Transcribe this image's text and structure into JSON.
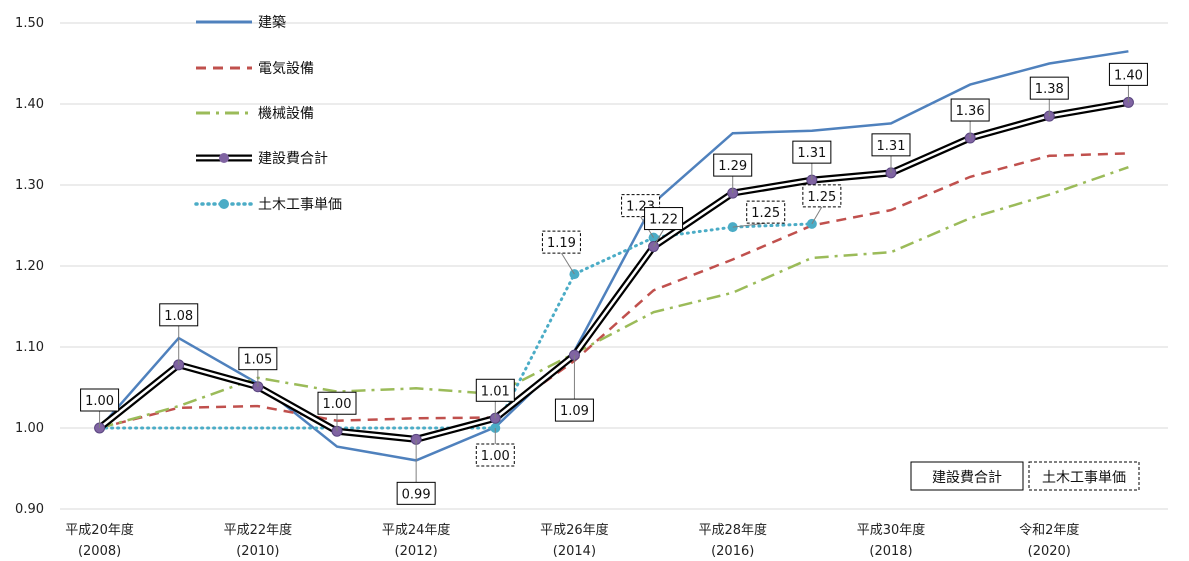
{
  "chart_data": {
    "type": "line",
    "ylim": [
      0.9,
      1.5
    ],
    "yticks": [
      "0.90",
      "1.00",
      "1.10",
      "1.20",
      "1.30",
      "1.40",
      "1.50"
    ],
    "x": [
      2008,
      2009,
      2010,
      2011,
      2012,
      2013,
      2014,
      2015,
      2016,
      2017,
      2018,
      2019,
      2020,
      2021
    ],
    "xticks": [
      {
        "x": 2008,
        "line1": "平成20年度",
        "line2": "(2008)"
      },
      {
        "x": 2010,
        "line1": "平成22年度",
        "line2": "(2010)"
      },
      {
        "x": 2012,
        "line1": "平成24年度",
        "line2": "(2012)"
      },
      {
        "x": 2014,
        "line1": "平成26年度",
        "line2": "(2014)"
      },
      {
        "x": 2016,
        "line1": "平成28年度",
        "line2": "(2016)"
      },
      {
        "x": 2018,
        "line1": "平成30年度",
        "line2": "(2018)"
      },
      {
        "x": 2020,
        "line1": "令和2年度",
        "line2": "(2020)"
      }
    ],
    "series": [
      {
        "name": "建築",
        "style": "solid",
        "color": "#4f81bd",
        "values": [
          1.0,
          1.111,
          1.055,
          0.977,
          0.96,
          1.001,
          1.095,
          1.278,
          1.364,
          1.367,
          1.376,
          1.424,
          1.45,
          1.465
        ]
      },
      {
        "name": "電気設備",
        "style": "dashed",
        "color": "#c0504d",
        "values": [
          1.0,
          1.025,
          1.027,
          1.009,
          1.012,
          1.013,
          1.083,
          1.17,
          1.208,
          1.25,
          1.269,
          1.31,
          1.336,
          1.339
        ]
      },
      {
        "name": "機械設備",
        "style": "dashdot",
        "color": "#9bbb59",
        "values": [
          1.0,
          1.027,
          1.062,
          1.045,
          1.049,
          1.042,
          1.092,
          1.143,
          1.167,
          1.21,
          1.217,
          1.259,
          1.288,
          1.322
        ]
      },
      {
        "name": "建設費合計",
        "style": "double",
        "color": "#000000",
        "marker_color": "#8064a2",
        "values": [
          1.0,
          1.078,
          1.051,
          0.996,
          0.986,
          1.012,
          1.09,
          1.224,
          1.29,
          1.306,
          1.315,
          1.358,
          1.385,
          1.402
        ]
      },
      {
        "name": "土木工事単価",
        "style": "dotted",
        "color": "#4bacc6",
        "values": [
          1.0,
          null,
          null,
          null,
          null,
          1.0,
          1.19,
          1.235,
          1.248,
          1.252,
          null,
          null,
          null,
          null
        ]
      }
    ],
    "annotations": [
      {
        "text": "1.00",
        "x": 2008,
        "y": 1.0,
        "pos": "above",
        "box": "solid"
      },
      {
        "text": "1.08",
        "x": 2009,
        "y": 1.078,
        "pos": "above",
        "box": "solid"
      },
      {
        "text": "1.05",
        "x": 2010,
        "y": 1.051,
        "pos": "above",
        "box": "solid"
      },
      {
        "text": "1.00",
        "x": 2011,
        "y": 0.996,
        "pos": "above",
        "box": "solid"
      },
      {
        "text": "0.99",
        "x": 2012,
        "y": 0.986,
        "pos": "below",
        "box": "solid"
      },
      {
        "text": "1.01",
        "x": 2013,
        "y": 1.012,
        "pos": "above",
        "box": "solid"
      },
      {
        "text": "1.00",
        "x": 2013,
        "y": 1.0,
        "pos": "below",
        "box": "dashed"
      },
      {
        "text": "1.19",
        "x": 2014,
        "y": 1.19,
        "pos": "above-left",
        "box": "dashed"
      },
      {
        "text": "1.09",
        "x": 2014,
        "y": 1.09,
        "pos": "below",
        "box": "solid"
      },
      {
        "text": "1.23",
        "x": 2015,
        "y": 1.235,
        "pos": "above-left",
        "box": "dashed"
      },
      {
        "text": "1.22",
        "x": 2015,
        "y": 1.224,
        "pos": "above-mid",
        "box": "solid"
      },
      {
        "text": "1.29",
        "x": 2016,
        "y": 1.29,
        "pos": "above",
        "box": "solid"
      },
      {
        "text": "1.25",
        "x": 2016,
        "y": 1.248,
        "pos": "above-right",
        "box": "dashed"
      },
      {
        "text": "1.31",
        "x": 2017,
        "y": 1.306,
        "pos": "above",
        "box": "solid"
      },
      {
        "text": "1.25",
        "x": 2017,
        "y": 1.252,
        "pos": "above-mid",
        "box": "dashed"
      },
      {
        "text": "1.31",
        "x": 2018,
        "y": 1.315,
        "pos": "above",
        "box": "solid"
      },
      {
        "text": "1.36",
        "x": 2019,
        "y": 1.358,
        "pos": "above",
        "box": "solid"
      },
      {
        "text": "1.38",
        "x": 2020,
        "y": 1.385,
        "pos": "above",
        "box": "solid"
      },
      {
        "text": "1.40",
        "x": 2021,
        "y": 1.402,
        "pos": "above",
        "box": "solid"
      }
    ],
    "legend_placement": "top-left",
    "key_boxes": [
      {
        "text": "建設費合計",
        "box": "solid"
      },
      {
        "text": "土木工事単価",
        "box": "dashed"
      }
    ],
    "grid": true
  }
}
